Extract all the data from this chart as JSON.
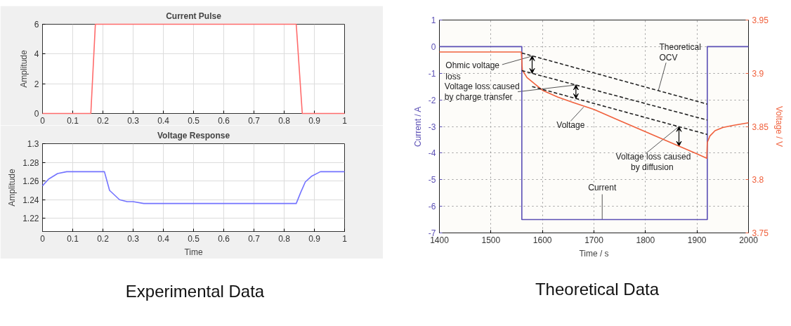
{
  "chart_data": [
    {
      "type": "line",
      "title": "Current Pulse",
      "ylabel": "Amplitude",
      "xlim": [
        0,
        1
      ],
      "ylim": [
        0,
        6
      ],
      "xticks": [
        0,
        0.1,
        0.2,
        0.3,
        0.4,
        0.5,
        0.6,
        0.7,
        0.8,
        0.9,
        1
      ],
      "yticks": [
        0,
        2,
        4,
        6
      ],
      "grid": true,
      "series": [
        {
          "color": "#ff6b6b",
          "x": [
            0,
            0.16,
            0.175,
            0.84,
            0.86,
            1
          ],
          "values": [
            0,
            0,
            6,
            6,
            0,
            0
          ]
        }
      ]
    },
    {
      "type": "line",
      "title": "Voltage Response",
      "xlabel": "Time",
      "ylabel": "Amplitude",
      "xlim": [
        0,
        1
      ],
      "ylim": [
        1.206,
        1.3
      ],
      "xticks": [
        0,
        0.1,
        0.2,
        0.3,
        0.4,
        0.5,
        0.6,
        0.7,
        0.8,
        0.9,
        1
      ],
      "yticks": [
        1.22,
        1.24,
        1.26,
        1.28,
        1.3
      ],
      "grid": true,
      "series": [
        {
          "color": "#7373ff",
          "x": [
            0,
            0.02,
            0.05,
            0.08,
            0.205,
            0.222,
            0.255,
            0.28,
            0.3,
            0.335,
            0.84,
            0.855,
            0.87,
            0.89,
            0.92,
            1
          ],
          "values": [
            1.255,
            1.262,
            1.268,
            1.27,
            1.27,
            1.25,
            1.24,
            1.238,
            1.238,
            1.236,
            1.236,
            1.248,
            1.259,
            1.265,
            1.27,
            1.27
          ]
        }
      ],
      "annotations": [
        "Experimental Data"
      ]
    },
    {
      "type": "line",
      "xlabel": "Time / s",
      "ylabel": "Current / A",
      "y2label": "Voltage / V",
      "xlim": [
        1400,
        2000
      ],
      "ylim": [
        -7,
        1
      ],
      "y2lim": [
        3.75,
        3.95
      ],
      "xticks": [
        1400,
        1500,
        1600,
        1700,
        1800,
        1900,
        2000
      ],
      "yticks": [
        -7,
        -6,
        -5,
        -4,
        -3,
        -2,
        -1,
        0,
        1
      ],
      "y2ticks": [
        3.75,
        3.8,
        3.85,
        3.9,
        3.95
      ],
      "grid": true,
      "series": [
        {
          "color": "#5b4fb5",
          "x": [
            1400,
            1560,
            1560,
            1920,
            1920,
            2000
          ],
          "values": [
            0,
            0,
            -6.5,
            -6.5,
            0,
            0
          ]
        },
        {
          "color": "#f0603c",
          "axis": "y2",
          "x": [
            1400,
            1559,
            1561,
            1570,
            1580,
            1590,
            1600,
            1630,
            1660,
            1700,
            1750,
            1800,
            1850,
            1900,
            1919,
            1920,
            1925,
            1935,
            1950,
            1970,
            2000
          ],
          "values": [
            3.92,
            3.92,
            3.903,
            3.896,
            3.892,
            3.888,
            3.884,
            3.8775,
            3.8725,
            3.866,
            3.8555,
            3.845,
            3.8346,
            3.8242,
            3.8202,
            3.835,
            3.841,
            3.846,
            3.849,
            3.851,
            3.8535
          ]
        },
        {
          "color": "#222222",
          "axis": "y2",
          "line_style": "dashed",
          "x": [
            1560,
            1920
          ],
          "values": [
            3.919,
            3.871
          ]
        },
        {
          "color": "#222222",
          "axis": "y2",
          "line_style": "dashed",
          "x": [
            1560,
            1920
          ],
          "values": [
            3.9025,
            3.856
          ]
        },
        {
          "color": "#222222",
          "axis": "y2",
          "line_style": "dashed",
          "x": [
            1580,
            1920
          ],
          "values": [
            3.8875,
            3.8425
          ]
        }
      ],
      "annotations": [
        {
          "text": "Ohmic voltage\nloss",
          "x": 1580,
          "y": -0.355
        },
        {
          "text": "Voltage loss caused\n by charge transfer",
          "x": 1665,
          "y": -1.44
        },
        {
          "text": "Voltage",
          "x": 1680,
          "y": -2.27
        },
        {
          "text": "Voltage loss caused\n by diffusion",
          "x": 1865,
          "y": -3.0
        },
        {
          "text": "Theoretical\nOCV",
          "x": 1825,
          "y": -1.65
        },
        {
          "text": "Current",
          "x": 1716,
          "y": -6.5
        },
        "Theoretical Data"
      ]
    }
  ]
}
